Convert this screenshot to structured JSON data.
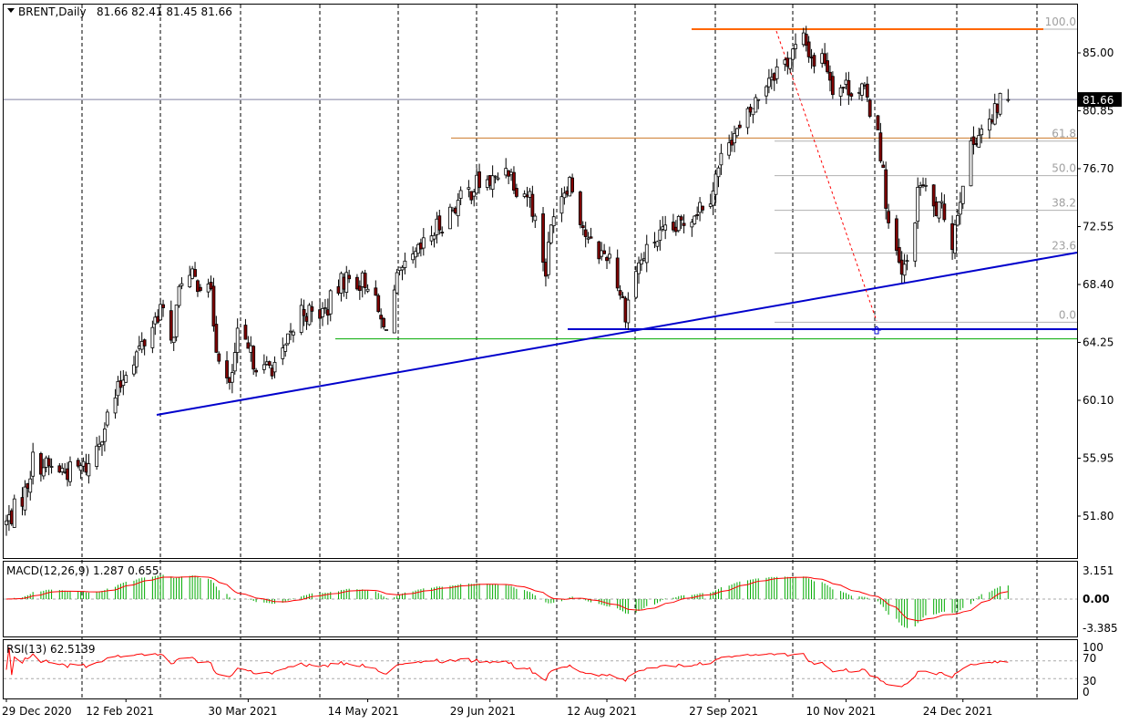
{
  "header": {
    "symbol": "BRENT,Daily",
    "ohlc": "81.66 82.41 81.45 81.66"
  },
  "price_axis": {
    "ticks": [
      "85.00",
      "80.85",
      "76.70",
      "72.55",
      "68.40",
      "64.25",
      "60.10",
      "55.95",
      "51.80"
    ],
    "current_price": "81.66"
  },
  "fibonacci_labels": [
    "100.0",
    "61.8",
    "50.0",
    "38.2",
    "23.6",
    "0.0"
  ],
  "macd": {
    "label": "MACD(12,26,9) 1.287 0.655",
    "ticks": [
      "3.151",
      "0.00",
      "-3.385"
    ]
  },
  "rsi": {
    "label": "RSI(13) 62.5139",
    "ticks": [
      "100",
      "70",
      "30",
      "0"
    ]
  },
  "date_labels": [
    "29 Dec 2020",
    "12 Feb 2021",
    "30 Mar 2021",
    "14 May 2021",
    "29 Jun 2021",
    "12 Aug 2021",
    "27 Sep 2021",
    "10 Nov 2021",
    "24 Dec 2021"
  ],
  "colors": {
    "bull": "#ffffff",
    "bear": "#800000",
    "trendline": "#0000cc",
    "support": "#00aa00",
    "resistance": "#ff6600",
    "macd_hist": "#00aa00",
    "macd_signal": "#ff0000",
    "rsi_line": "#ff0000"
  },
  "chart_data": {
    "type": "candlestick",
    "symbol": "BRENT",
    "timeframe": "Daily",
    "ylim": [
      50.0,
      87.0
    ],
    "close_path": [
      [
        "2020-12-29",
        51.3
      ],
      [
        "2021-01-05",
        53.5
      ],
      [
        "2021-01-08",
        55.8
      ],
      [
        "2021-01-15",
        55.2
      ],
      [
        "2021-01-22",
        55.0
      ],
      [
        "2021-01-29",
        55.4
      ],
      [
        "2021-02-05",
        58.9
      ],
      [
        "2021-02-10",
        61.2
      ],
      [
        "2021-02-12",
        62.4
      ],
      [
        "2021-02-19",
        64.3
      ],
      [
        "2021-02-25",
        66.8
      ],
      [
        "2021-03-01",
        64.0
      ],
      [
        "2021-03-05",
        69.0
      ],
      [
        "2021-03-11",
        68.6
      ],
      [
        "2021-03-15",
        68.9
      ],
      [
        "2021-03-18",
        64.2
      ],
      [
        "2021-03-23",
        60.8
      ],
      [
        "2021-03-26",
        64.6
      ],
      [
        "2021-03-30",
        63.5
      ],
      [
        "2021-04-05",
        62.2
      ],
      [
        "2021-04-12",
        63.2
      ],
      [
        "2021-04-19",
        66.6
      ],
      [
        "2021-04-23",
        66.2
      ],
      [
        "2021-04-28",
        66.5
      ],
      [
        "2021-05-05",
        68.8
      ],
      [
        "2021-05-11",
        68.6
      ],
      [
        "2021-05-14",
        68.7
      ],
      [
        "2021-05-20",
        65.1
      ],
      [
        "2021-05-25",
        68.6
      ],
      [
        "2021-06-01",
        70.3
      ],
      [
        "2021-06-08",
        72.2
      ],
      [
        "2021-06-15",
        73.9
      ],
      [
        "2021-06-24",
        75.6
      ],
      [
        "2021-07-01",
        75.8
      ],
      [
        "2021-07-05",
        77.1
      ],
      [
        "2021-07-09",
        75.5
      ],
      [
        "2021-07-14",
        74.8
      ],
      [
        "2021-07-20",
        69.4
      ],
      [
        "2021-07-23",
        74.0
      ],
      [
        "2021-07-29",
        76.0
      ],
      [
        "2021-08-05",
        71.3
      ],
      [
        "2021-08-10",
        70.6
      ],
      [
        "2021-08-13",
        70.6
      ],
      [
        "2021-08-19",
        66.5
      ],
      [
        "2021-08-23",
        69.5
      ],
      [
        "2021-08-30",
        71.6
      ],
      [
        "2021-09-06",
        72.2
      ],
      [
        "2021-09-13",
        73.5
      ],
      [
        "2021-09-20",
        74.9
      ],
      [
        "2021-09-27",
        79.1
      ],
      [
        "2021-10-01",
        79.3
      ],
      [
        "2021-10-06",
        81.1
      ],
      [
        "2021-10-12",
        83.4
      ],
      [
        "2021-10-18",
        84.3
      ],
      [
        "2021-10-25",
        85.9
      ],
      [
        "2021-10-29",
        84.4
      ],
      [
        "2021-11-02",
        84.7
      ],
      [
        "2021-11-05",
        82.7
      ],
      [
        "2021-11-10",
        82.6
      ],
      [
        "2021-11-16",
        82.4
      ],
      [
        "2021-11-22",
        79.7
      ],
      [
        "2021-11-26",
        72.7
      ],
      [
        "2021-12-01",
        68.9
      ],
      [
        "2021-12-03",
        69.9
      ],
      [
        "2021-12-08",
        75.8
      ],
      [
        "2021-12-13",
        73.8
      ],
      [
        "2021-12-17",
        73.5
      ],
      [
        "2021-12-20",
        71.5
      ],
      [
        "2021-12-24",
        76.1
      ],
      [
        "2021-12-29",
        79.2
      ],
      [
        "2022-01-04",
        80.0
      ],
      [
        "2022-01-07",
        81.7
      ],
      [
        "2022-01-10",
        81.66
      ]
    ],
    "drawn_levels": {
      "fib_100": 86.7,
      "fib_0": 65.7,
      "resistance_hline": 78.9,
      "support_hline": 64.5,
      "support_hline_blue": 65.2
    }
  }
}
